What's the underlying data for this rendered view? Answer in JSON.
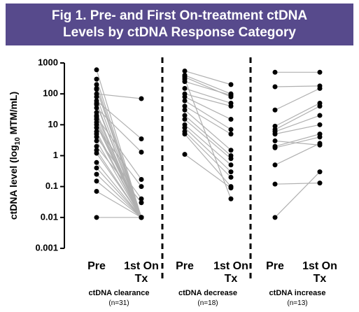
{
  "chart_data": {
    "type": "paired-dot",
    "title": "Fig 1. Pre- and First On-treatment ctDNA Levels by ctDNA Response Category",
    "ylabel": [
      "ctDNA level (log",
      "10",
      " MTM/mL)"
    ],
    "ylog": true,
    "ylim": [
      0.001,
      1000
    ],
    "yticks": [
      1000,
      100,
      10,
      1,
      0.1,
      0.01,
      0.001
    ],
    "categories": [
      "Pre",
      "1st On Tx"
    ],
    "dot_color": "#000000",
    "line_color": "#b0b0b0",
    "groups": [
      {
        "name": "ctDNA clearance",
        "n_label": "(n=31)",
        "pre": [
          600,
          300,
          200,
          140,
          100,
          80,
          60,
          45,
          35,
          25,
          18,
          12,
          8,
          6,
          4,
          3,
          2,
          1.2,
          0.6,
          0.4,
          0.25,
          0.15,
          0.07,
          0.01,
          150,
          50,
          20,
          15,
          10,
          5,
          1.5
        ],
        "on_tx": [
          0.01,
          0.01,
          0.01,
          0.01,
          70,
          0.01,
          3.5,
          0.01,
          1.3,
          0.01,
          0.17,
          0.01,
          0.1,
          0.01,
          0.04,
          0.01,
          0.03,
          0.01,
          0.01,
          0.01,
          0.01,
          0.01,
          0.01,
          0.01,
          0.01,
          0.01,
          0.01,
          0.01,
          0.01,
          0.01,
          0.01
        ]
      },
      {
        "name": "ctDNA decrease",
        "n_label": "(n=18)",
        "pre": [
          550,
          400,
          350,
          250,
          150,
          100,
          80,
          40,
          30,
          20,
          15,
          10,
          8,
          6,
          5,
          1.1,
          300,
          60
        ],
        "on_tx": [
          200,
          100,
          80,
          90,
          50,
          40,
          15,
          5,
          1.5,
          1,
          0.8,
          0.5,
          0.3,
          0.2,
          0.1,
          0.09,
          0.04,
          7
        ]
      },
      {
        "name": "ctDNA increase",
        "n_label": "(n=13)",
        "pre": [
          500,
          170,
          30,
          9,
          7,
          5,
          2,
          1.8,
          0.5,
          0.12,
          0.01,
          3,
          6
        ],
        "on_tx": [
          500,
          180,
          150,
          50,
          40,
          10,
          5,
          4,
          2.5,
          0.13,
          0.3,
          2.2,
          20
        ]
      }
    ]
  }
}
